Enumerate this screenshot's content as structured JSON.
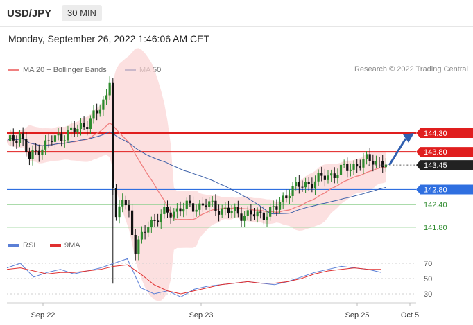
{
  "header": {
    "symbol": "USD/JPY",
    "timeframe_tab": "30 MIN",
    "timestamp": "Monday, September 26, 2022 1:46:06 AM CET"
  },
  "legend": {
    "ma20_label": "MA 20 + Bollinger Bands",
    "ma50_label": "MA 50",
    "copyright": "Research © 2022 Trading Central",
    "ma20_color": "#f08080",
    "ma50_color": "#3a5fa8"
  },
  "rsi_legend": {
    "rsi_label": "RSI",
    "ma_label": "9MA",
    "rsi_color": "#5b7fd6",
    "ma_color": "#e03030"
  },
  "price_levels": [
    {
      "value": "144.30",
      "color": "#e01e1e",
      "kind": "resistance-box",
      "line": true
    },
    {
      "value": "143.80",
      "color": "#e01e1e",
      "kind": "resistance-box",
      "line": true
    },
    {
      "value": "143.45",
      "color": "#222222",
      "kind": "last-price",
      "line": false
    },
    {
      "value": "142.80",
      "color": "#2f6fe0",
      "kind": "pivot-box",
      "line": true
    },
    {
      "value": "142.40",
      "color": "#2e8b2e",
      "kind": "support-text",
      "line": true
    },
    {
      "value": "141.80",
      "color": "#2e8b2e",
      "kind": "support-text",
      "line": true
    }
  ],
  "chart_data": [
    {
      "type": "candlestick",
      "title": "USD/JPY 30 MIN",
      "x_ticks": [
        "Sep 22",
        "Sep 23",
        "Sep 25",
        "Oct 5"
      ],
      "close_approx": [
        {
          "t": 0,
          "close": 144.0
        },
        {
          "t": 4,
          "close": 144.3
        },
        {
          "t": 7,
          "close": 143.6
        },
        {
          "t": 10,
          "close": 143.9
        },
        {
          "t": 16,
          "close": 144.2
        },
        {
          "t": 22,
          "close": 144.4
        },
        {
          "t": 28,
          "close": 144.8
        },
        {
          "t": 31,
          "close": 145.3
        },
        {
          "t": 32,
          "close": 145.8
        },
        {
          "t": 33,
          "close": 142.9
        },
        {
          "t": 34,
          "close": 141.9
        },
        {
          "t": 36,
          "close": 142.6
        },
        {
          "t": 38,
          "close": 142.2
        },
        {
          "t": 40,
          "close": 141.2
        },
        {
          "t": 42,
          "close": 141.5
        },
        {
          "t": 44,
          "close": 141.9
        },
        {
          "t": 48,
          "close": 142.1
        },
        {
          "t": 54,
          "close": 142.3
        },
        {
          "t": 62,
          "close": 142.4
        },
        {
          "t": 70,
          "close": 142.2
        },
        {
          "t": 78,
          "close": 142.1
        },
        {
          "t": 84,
          "close": 142.3
        },
        {
          "t": 88,
          "close": 142.8
        },
        {
          "t": 92,
          "close": 142.9
        },
        {
          "t": 98,
          "close": 143.1
        },
        {
          "t": 104,
          "close": 143.3
        },
        {
          "t": 110,
          "close": 143.5
        },
        {
          "t": 114,
          "close": 143.6
        },
        {
          "t": 118,
          "close": 143.45
        }
      ],
      "projection": {
        "from": 143.45,
        "to": 144.3
      }
    },
    {
      "type": "line",
      "title": "RSI",
      "y_ticks": [
        70,
        50,
        30
      ],
      "ylim": [
        20,
        80
      ],
      "series": [
        {
          "name": "RSI",
          "values": [
            64,
            70,
            52,
            58,
            62,
            56,
            60,
            64,
            70,
            76,
            38,
            30,
            34,
            26,
            36,
            40,
            42,
            44,
            46,
            44,
            42,
            46,
            52,
            58,
            62,
            66,
            64,
            62,
            58
          ]
        },
        {
          "name": "9MA",
          "values": [
            62,
            64,
            60,
            56,
            58,
            58,
            60,
            62,
            66,
            68,
            56,
            42,
            34,
            30,
            34,
            38,
            42,
            44,
            46,
            44,
            44,
            46,
            50,
            56,
            60,
            62,
            64,
            62,
            62
          ]
        }
      ]
    }
  ]
}
